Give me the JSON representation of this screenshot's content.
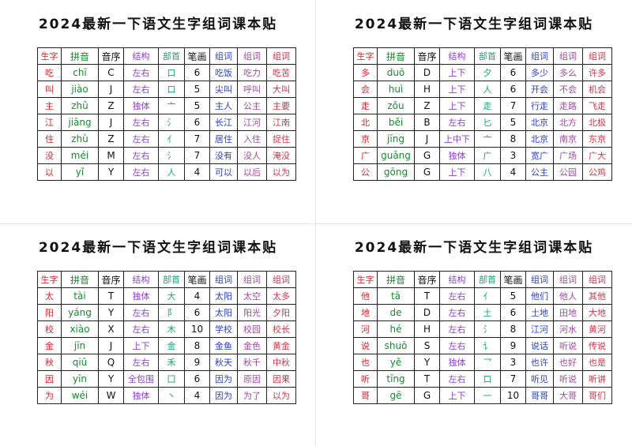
{
  "quadrants": [
    {
      "title": "2024最新一下语文生字组词课本贴",
      "table": {
        "header": [
          "生字",
          "拼音",
          "音序",
          "结构",
          "部首",
          "笔画",
          "组词",
          "组词",
          "组词"
        ],
        "rows": [
          [
            "吃",
            "chī",
            "C",
            "左右",
            "口",
            6,
            "吃饭",
            "吃力",
            "吃苦"
          ],
          [
            "叫",
            "jiào",
            "J",
            "左右",
            "口",
            5,
            "尖叫",
            "呼叫",
            "大叫"
          ],
          [
            "主",
            "zhǔ",
            "Z",
            "独体",
            "亠",
            5,
            "主人",
            "公主",
            "主要"
          ],
          [
            "江",
            "jiāng",
            "J",
            "左右",
            "氵",
            6,
            "长江",
            "江河",
            "江南"
          ],
          [
            "住",
            "zhù",
            "Z",
            "左右",
            "亻",
            7,
            "居住",
            "入住",
            "捉住"
          ],
          [
            "没",
            "méi",
            "M",
            "左右",
            "氵",
            7,
            "没有",
            "没人",
            "淹没"
          ],
          [
            "以",
            "yǐ",
            "Y",
            "左右",
            "人",
            4,
            "可以",
            "以后",
            "以为"
          ]
        ]
      }
    },
    {
      "title": "2024最新一下语文生字组词课本贴",
      "table": {
        "header": [
          "生字",
          "拼音",
          "音序",
          "结构",
          "部首",
          "笔画",
          "组词",
          "组词",
          "组词"
        ],
        "rows": [
          [
            "多",
            "duō",
            "D",
            "上下",
            "夕",
            6,
            "多少",
            "多么",
            "许多"
          ],
          [
            "会",
            "huì",
            "H",
            "上下",
            "人",
            6,
            "开会",
            "不会",
            "机会"
          ],
          [
            "走",
            "zǒu",
            "Z",
            "上下",
            "走",
            7,
            "行走",
            "走路",
            "飞走"
          ],
          [
            "北",
            "běi",
            "B",
            "左右",
            "匕",
            5,
            "北京",
            "北方",
            "北极"
          ],
          [
            "京",
            "jīng",
            "J",
            "上中下",
            "亠",
            8,
            "北京",
            "南京",
            "东京"
          ],
          [
            "广",
            "guǎng",
            "G",
            "独体",
            "广",
            3,
            "宽广",
            "广场",
            "广大"
          ],
          [
            "公",
            "gōng",
            "G",
            "上下",
            "八",
            4,
            "公主",
            "公园",
            "公鸡"
          ]
        ]
      }
    },
    {
      "title": "2024最新一下语文生字组词课本贴",
      "table": {
        "header": [
          "生字",
          "拼音",
          "音序",
          "结构",
          "部首",
          "笔画",
          "组词",
          "组词",
          "组词"
        ],
        "rows": [
          [
            "太",
            "tài",
            "T",
            "独体",
            "大",
            4,
            "太阳",
            "太空",
            "太多"
          ],
          [
            "阳",
            "yáng",
            "Y",
            "左右",
            "阝",
            6,
            "太阳",
            "阳光",
            "夕阳"
          ],
          [
            "校",
            "xiào",
            "X",
            "左右",
            "木",
            10,
            "学校",
            "校园",
            "校长"
          ],
          [
            "金",
            "jīn",
            "J",
            "上下",
            "金",
            8,
            "金鱼",
            "金色",
            "黄金"
          ],
          [
            "秋",
            "qiū",
            "Q",
            "左右",
            "禾",
            9,
            "秋天",
            "秋千",
            "中秋"
          ],
          [
            "因",
            "yīn",
            "Y",
            "全包围",
            "囗",
            6,
            "因为",
            "原因",
            "因果"
          ],
          [
            "为",
            "wéi",
            "W",
            "独体",
            "丶",
            4,
            "因为",
            "为了",
            "以为"
          ]
        ]
      }
    },
    {
      "title": "2024最新一下语文生字组词课本贴",
      "table": {
        "header": [
          "生字",
          "拼音",
          "音序",
          "结构",
          "部首",
          "笔画",
          "组词",
          "组词",
          "组词"
        ],
        "rows": [
          [
            "他",
            "tā",
            "T",
            "左右",
            "亻",
            5,
            "他们",
            "他人",
            "其他"
          ],
          [
            "地",
            "de",
            "D",
            "左右",
            "土",
            6,
            "土地",
            "田地",
            "大地"
          ],
          [
            "河",
            "hé",
            "H",
            "左右",
            "氵",
            8,
            "江河",
            "河水",
            "黄河"
          ],
          [
            "说",
            "shuō",
            "S",
            "左右",
            "讠",
            9,
            "说话",
            "听说",
            "传说"
          ],
          [
            "也",
            "yě",
            "Y",
            "独体",
            "乛",
            3,
            "也许",
            "也好",
            "也是"
          ],
          [
            "听",
            "tīng",
            "T",
            "左右",
            "口",
            7,
            "听见",
            "听说",
            "听讲"
          ],
          [
            "哥",
            "gē",
            "G",
            "上下",
            "一",
            10,
            "哥哥",
            "大哥",
            "哥们"
          ]
        ]
      }
    }
  ]
}
